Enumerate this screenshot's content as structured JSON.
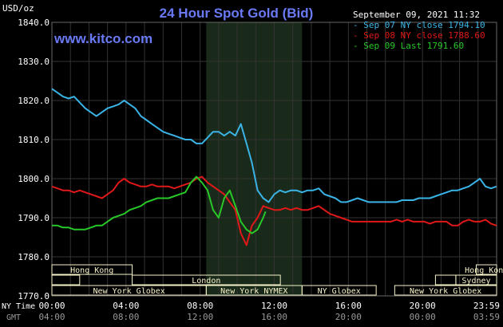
{
  "chart_data": {
    "type": "line",
    "title": "24 Hour Spot Gold (Bid)",
    "source": "www.kitco.com",
    "unit_label": "USD/oz",
    "timestamp": "September 09, 2021 11:32",
    "ylim": [
      1770,
      1840
    ],
    "y_ticks": [
      "1840.0",
      "1830.0",
      "1820.0",
      "1810.0",
      "1800.0",
      "1790.0",
      "1780.0",
      "1770.0"
    ],
    "x_range_hours": [
      0,
      24
    ],
    "x_row_label_top": "NY Time",
    "x_row_label_bottom": "GMT",
    "x_ticks_top": [
      "00:00",
      "04:00",
      "08:00",
      "12:00",
      "16:00",
      "20:00",
      "23:59"
    ],
    "x_ticks_bottom": [
      "04:00",
      "08:00",
      "12:00",
      "16:00",
      "20:00",
      "00:00",
      "03:59"
    ],
    "shaded_interval_hours": [
      8.33,
      13.5
    ],
    "grid": true,
    "legend_position": "top-right",
    "colors": {
      "background": "#000000",
      "grid": "#333333",
      "shade": "#1a2a1a",
      "sessions_bar": "#f6f2c8",
      "sessions_text": "#000000"
    },
    "series": [
      {
        "name": "Sep 07 NY close 1794.10",
        "color": "#3ab4e6",
        "x": [
          0,
          0.3,
          0.6,
          0.9,
          1.2,
          1.5,
          1.8,
          2.1,
          2.4,
          2.7,
          3.0,
          3.3,
          3.6,
          3.9,
          4.2,
          4.5,
          4.8,
          5.1,
          5.4,
          5.7,
          6.0,
          6.3,
          6.6,
          6.9,
          7.2,
          7.5,
          7.8,
          8.1,
          8.4,
          8.7,
          9.0,
          9.3,
          9.6,
          9.9,
          10.2,
          10.5,
          10.8,
          11.1,
          11.4,
          11.7,
          12.0,
          12.3,
          12.6,
          12.9,
          13.2,
          13.5,
          13.8,
          14.1,
          14.4,
          14.7,
          15.0,
          15.3,
          15.6,
          15.9,
          16.2,
          16.5,
          16.8,
          17.1,
          17.4,
          17.7,
          18.0,
          18.3,
          18.6,
          18.9,
          19.2,
          19.5,
          19.8,
          20.1,
          20.4,
          20.7,
          21.0,
          21.3,
          21.6,
          21.9,
          22.2,
          22.5,
          22.8,
          23.1,
          23.4,
          23.7,
          23.99
        ],
        "y": [
          1823,
          1822,
          1821,
          1820.5,
          1821,
          1819.5,
          1818,
          1817,
          1816,
          1817,
          1818,
          1818.5,
          1819,
          1820,
          1819,
          1818,
          1816,
          1815,
          1814,
          1813,
          1812,
          1811.5,
          1811,
          1810.5,
          1810,
          1810,
          1809,
          1809,
          1810.5,
          1812,
          1812,
          1811,
          1812,
          1811,
          1814,
          1809,
          1804,
          1797,
          1795,
          1794,
          1796,
          1797,
          1796.5,
          1797,
          1797,
          1796.5,
          1797,
          1797,
          1797.5,
          1796,
          1795.5,
          1795,
          1794,
          1794,
          1794.5,
          1795,
          1794.5,
          1794,
          1794,
          1794,
          1794,
          1794,
          1794,
          1794.5,
          1794.5,
          1794.5,
          1795,
          1795,
          1795,
          1795.5,
          1796,
          1796.5,
          1797,
          1797,
          1797.5,
          1798,
          1799,
          1800,
          1798,
          1797.5,
          1798
        ]
      },
      {
        "name": "Sep 08 NY close 1788.60",
        "color": "#e01818",
        "x": [
          0,
          0.3,
          0.6,
          0.9,
          1.2,
          1.5,
          1.8,
          2.1,
          2.4,
          2.7,
          3.0,
          3.3,
          3.6,
          3.9,
          4.2,
          4.5,
          4.8,
          5.1,
          5.4,
          5.7,
          6.0,
          6.3,
          6.6,
          6.9,
          7.2,
          7.5,
          7.8,
          8.1,
          8.4,
          8.7,
          9.0,
          9.3,
          9.6,
          9.9,
          10.2,
          10.5,
          10.8,
          11.1,
          11.4,
          11.7,
          12.0,
          12.3,
          12.6,
          12.9,
          13.2,
          13.5,
          13.8,
          14.1,
          14.4,
          14.7,
          15.0,
          15.3,
          15.6,
          15.9,
          16.2,
          16.5,
          16.8,
          17.1,
          17.4,
          17.7,
          18.0,
          18.3,
          18.6,
          18.9,
          19.2,
          19.5,
          19.8,
          20.1,
          20.4,
          20.7,
          21.0,
          21.3,
          21.6,
          21.9,
          22.2,
          22.5,
          22.8,
          23.1,
          23.4,
          23.7,
          23.99
        ],
        "y": [
          1798,
          1797.5,
          1797,
          1797,
          1796.5,
          1797,
          1796.5,
          1796,
          1795.5,
          1795,
          1796,
          1797,
          1799,
          1800,
          1799,
          1798.5,
          1798,
          1798,
          1798.5,
          1798,
          1798,
          1798,
          1797.5,
          1798,
          1798.5,
          1799,
          1800,
          1800.5,
          1799,
          1798,
          1797,
          1796,
          1794,
          1792,
          1786,
          1783,
          1788,
          1790,
          1793,
          1792.5,
          1792,
          1792,
          1792.5,
          1792,
          1792.5,
          1792,
          1792,
          1792.5,
          1793,
          1792,
          1791,
          1790.5,
          1790,
          1789.5,
          1789,
          1789,
          1789,
          1789,
          1789,
          1789,
          1789,
          1789,
          1789.5,
          1789,
          1789.5,
          1789,
          1789,
          1789,
          1788.5,
          1789,
          1789,
          1789,
          1788,
          1788,
          1789,
          1789.5,
          1789,
          1789,
          1789.5,
          1788.5,
          1788
        ]
      },
      {
        "name": "Sep 09 Last 1791.60",
        "color": "#28c828",
        "x": [
          0,
          0.3,
          0.6,
          0.9,
          1.2,
          1.5,
          1.8,
          2.1,
          2.4,
          2.7,
          3.0,
          3.3,
          3.6,
          3.9,
          4.2,
          4.5,
          4.8,
          5.1,
          5.4,
          5.7,
          6.0,
          6.3,
          6.6,
          6.9,
          7.2,
          7.5,
          7.8,
          8.1,
          8.4,
          8.7,
          9.0,
          9.3,
          9.6,
          9.9,
          10.2,
          10.5,
          10.8,
          11.1,
          11.4,
          11.53
        ],
        "y": [
          1788,
          1788,
          1787.5,
          1787.5,
          1787,
          1787,
          1787,
          1787.5,
          1788,
          1788,
          1789,
          1790,
          1790.5,
          1791,
          1792,
          1792.5,
          1793,
          1794,
          1794.5,
          1795,
          1795,
          1795,
          1795.5,
          1796,
          1796.5,
          1799,
          1800.5,
          1799,
          1797,
          1792,
          1790,
          1795,
          1797,
          1793,
          1789,
          1787,
          1786,
          1787,
          1790,
          1791.6
        ]
      }
    ],
    "sessions": {
      "rows": [
        [
          {
            "label": "Hong Kong",
            "start": 0,
            "end": 4.33
          },
          {
            "label": "Hong Kong",
            "start": 22.9,
            "end": 24
          }
        ],
        [
          {
            "label": "",
            "start": 0,
            "end": 1.5
          },
          {
            "label": "London",
            "start": 4.33,
            "end": 12.33
          },
          {
            "label": "",
            "start": 20.7,
            "end": 21.8
          },
          {
            "label": "Sydney",
            "start": 21.8,
            "end": 24
          }
        ],
        [
          {
            "label": "New York Globex",
            "start": 0,
            "end": 8.33
          },
          {
            "label": "New York NYMEX",
            "start": 8.33,
            "end": 13.5
          },
          {
            "label": "NY Globex",
            "start": 13.5,
            "end": 17.5
          },
          {
            "label": "New York Globex",
            "start": 18.5,
            "end": 24
          }
        ]
      ]
    }
  }
}
